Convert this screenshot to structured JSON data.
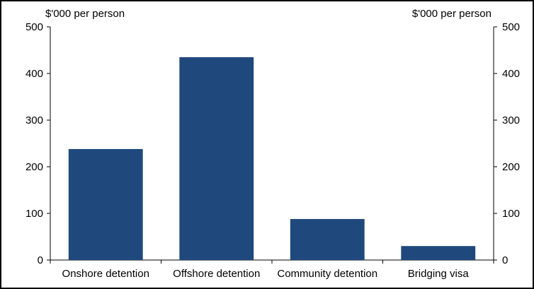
{
  "chart_data": {
    "type": "bar",
    "categories": [
      "Onshore detention",
      "Offshore detention",
      "Community detention",
      "Bridging visa"
    ],
    "values": [
      238,
      435,
      88,
      30
    ],
    "title": "",
    "ylabel_left": "$'000 per person",
    "ylabel_right": "$'000 per person",
    "xlabel": "",
    "ylim": [
      0,
      500
    ],
    "yticks": [
      "0",
      "100",
      "200",
      "300",
      "400",
      "500"
    ],
    "grid": false,
    "legend": "none",
    "bar_color": "#1f497d"
  }
}
